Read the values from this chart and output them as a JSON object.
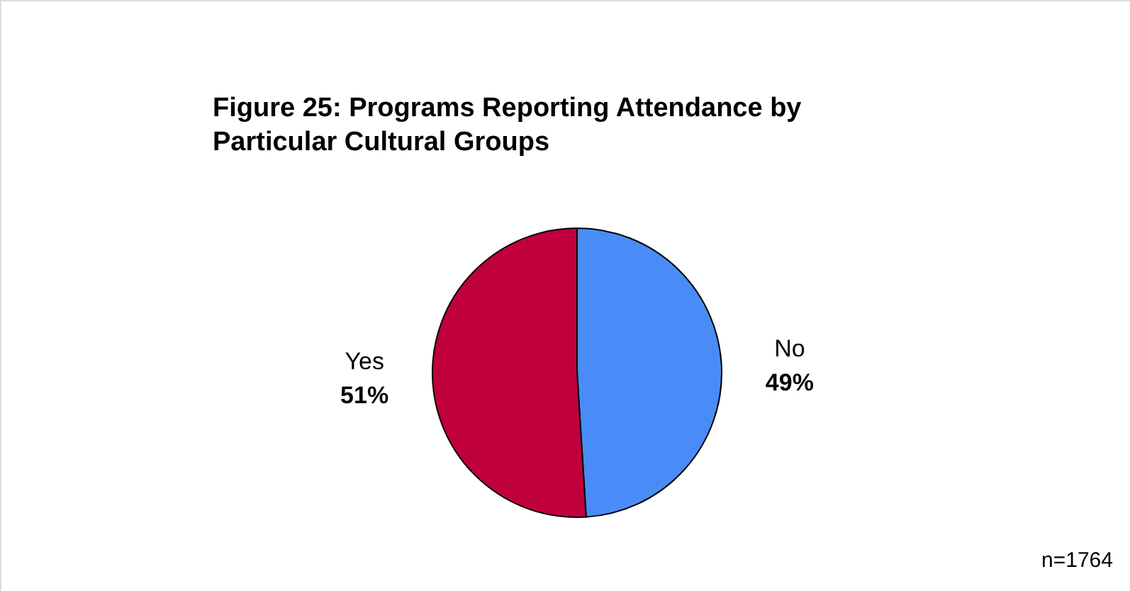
{
  "chart_data": {
    "type": "pie",
    "title": "Figure 25:  Programs Reporting Attendance by\nParticular Cultural Groups",
    "categories": [
      "No",
      "Yes"
    ],
    "values": [
      49,
      51
    ],
    "value_labels": [
      "49%",
      "51%"
    ],
    "colors": [
      "#4a8cf7",
      "#c0003c"
    ],
    "legend": false,
    "annotations": [
      "n=1764"
    ]
  }
}
